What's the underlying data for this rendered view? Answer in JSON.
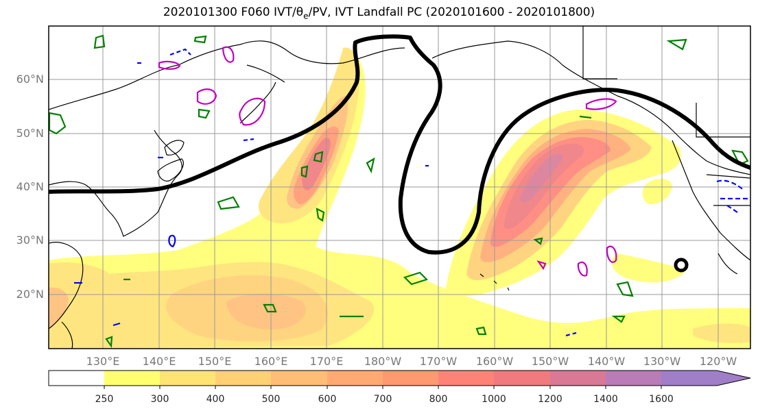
{
  "title": {
    "prefix": "2020101300 F060 IVT/",
    "theta": "θ",
    "theta_sub": "e",
    "suffix": "/PV, IVT Landfall PC (2020101600 - 2020101800)"
  },
  "lat_labels": [
    "60°N",
    "50°N",
    "40°N",
    "30°N",
    "20°N"
  ],
  "lon_labels": [
    "130°E",
    "140°E",
    "150°E",
    "160°E",
    "170°E",
    "180°W",
    "170°W",
    "160°W",
    "150°W",
    "140°W",
    "130°W",
    "120°W"
  ],
  "colorbar": {
    "levels": [
      "250",
      "300",
      "400",
      "500",
      "600",
      "700",
      "800",
      "1000",
      "1200",
      "1400",
      "1600"
    ],
    "colors": [
      "#ffffff",
      "#ffff70",
      "#ffe373",
      "#ffd074",
      "#ffbd76",
      "#ffaa73",
      "#ff9970",
      "#ff8277",
      "#ef7b7f",
      "#d97996",
      "#b97cb8",
      "#a07ec8"
    ],
    "extend": "max"
  },
  "legend": {
    "ivt_fill": "IVT",
    "theta_contour_color": "#008000",
    "pv_pos_color": "#c000c0",
    "pv_neg_color": "#0000ff",
    "landfall_pc_color": "#000000"
  }
}
